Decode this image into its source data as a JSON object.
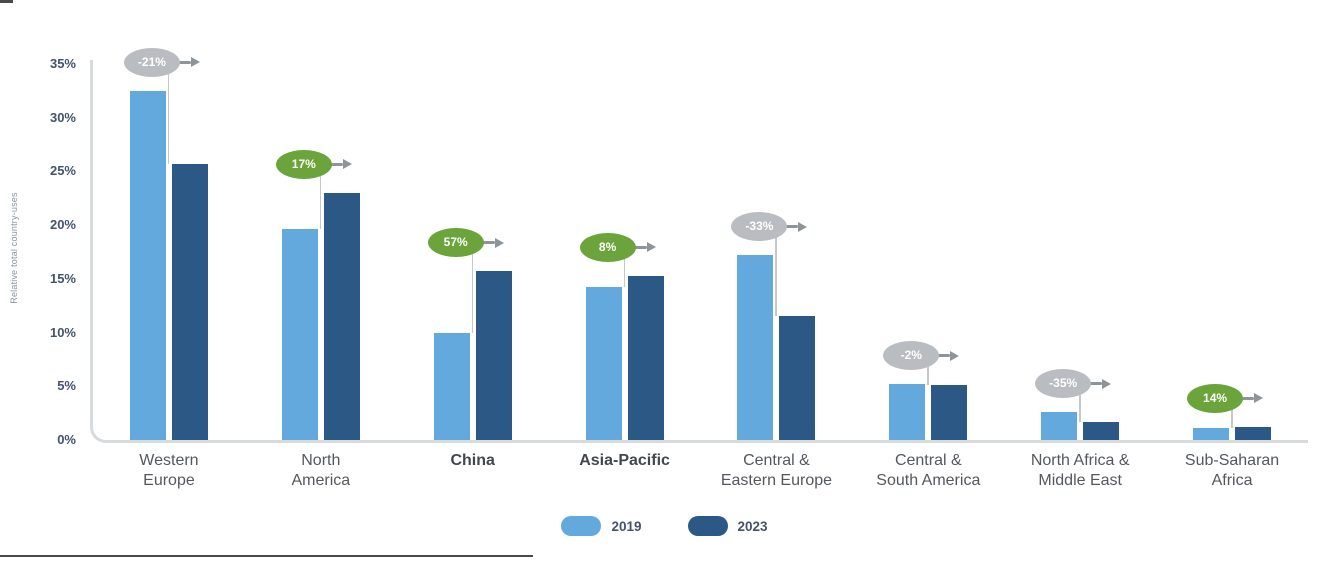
{
  "page": {
    "background": "#FFFFFF"
  },
  "chart_data": {
    "type": "grouped_bar",
    "title": "",
    "ylabel": "Relative total country-uses",
    "ylim": [
      0,
      35
    ],
    "yticks": [
      "0%",
      "5%",
      "10%",
      "15%",
      "20%",
      "25%",
      "30%",
      "35%"
    ],
    "ytick_values": [
      0,
      5,
      10,
      15,
      20,
      25,
      30,
      35
    ],
    "grid": false,
    "categories": [
      {
        "label": "Western\nEurope",
        "bold": false
      },
      {
        "label": "North\nAmerica",
        "bold": false
      },
      {
        "label": "China",
        "bold": true
      },
      {
        "label": "Asia-Pacific",
        "bold": true
      },
      {
        "label": "Central &\nEastern Europe",
        "bold": false
      },
      {
        "label": "Central &\nSouth America",
        "bold": false
      },
      {
        "label": "North Africa &\nMiddle East",
        "bold": false
      },
      {
        "label": "Sub-Saharan\nAfrica",
        "bold": false
      }
    ],
    "series": [
      {
        "name": "2019",
        "color": "#63A9DD",
        "values": [
          32.5,
          19.6,
          10.0,
          14.2,
          17.2,
          5.2,
          2.6,
          1.1
        ]
      },
      {
        "name": "2023",
        "color": "#2B5884",
        "values": [
          25.7,
          23.0,
          15.7,
          15.3,
          11.5,
          5.1,
          1.7,
          1.25
        ]
      }
    ],
    "changes": [
      {
        "label": "-21%",
        "direction": "decrease"
      },
      {
        "label": "17%",
        "direction": "increase"
      },
      {
        "label": "57%",
        "direction": "increase"
      },
      {
        "label": "8%",
        "direction": "increase"
      },
      {
        "label": "-33%",
        "direction": "decrease"
      },
      {
        "label": "-2%",
        "direction": "decrease"
      },
      {
        "label": "-35%",
        "direction": "decrease"
      },
      {
        "label": "14%",
        "direction": "increase"
      }
    ],
    "change_colors": {
      "increase": "#6BA43A",
      "decrease": "#B9BDC1"
    },
    "arrow_color": "#8E9498",
    "legend": [
      "2019",
      "2023"
    ],
    "legend_position": "bottom-center"
  }
}
